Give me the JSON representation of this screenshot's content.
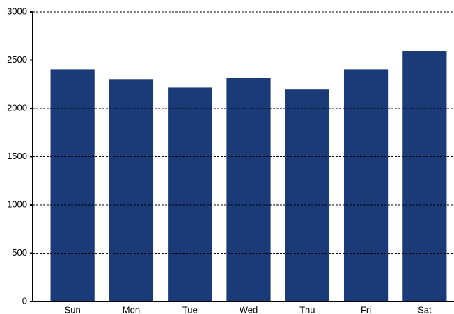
{
  "chart_data": {
    "type": "bar",
    "categories": [
      "Sun",
      "Mon",
      "Tue",
      "Wed",
      "Thu",
      "Fri",
      "Sat"
    ],
    "values": [
      2400,
      2300,
      2220,
      2310,
      2200,
      2400,
      2590
    ],
    "color": "#1a3a78",
    "ylim": [
      0,
      3000
    ],
    "yticks": [
      0,
      500,
      1000,
      1500,
      2000,
      2500,
      3000
    ],
    "grid": true
  }
}
